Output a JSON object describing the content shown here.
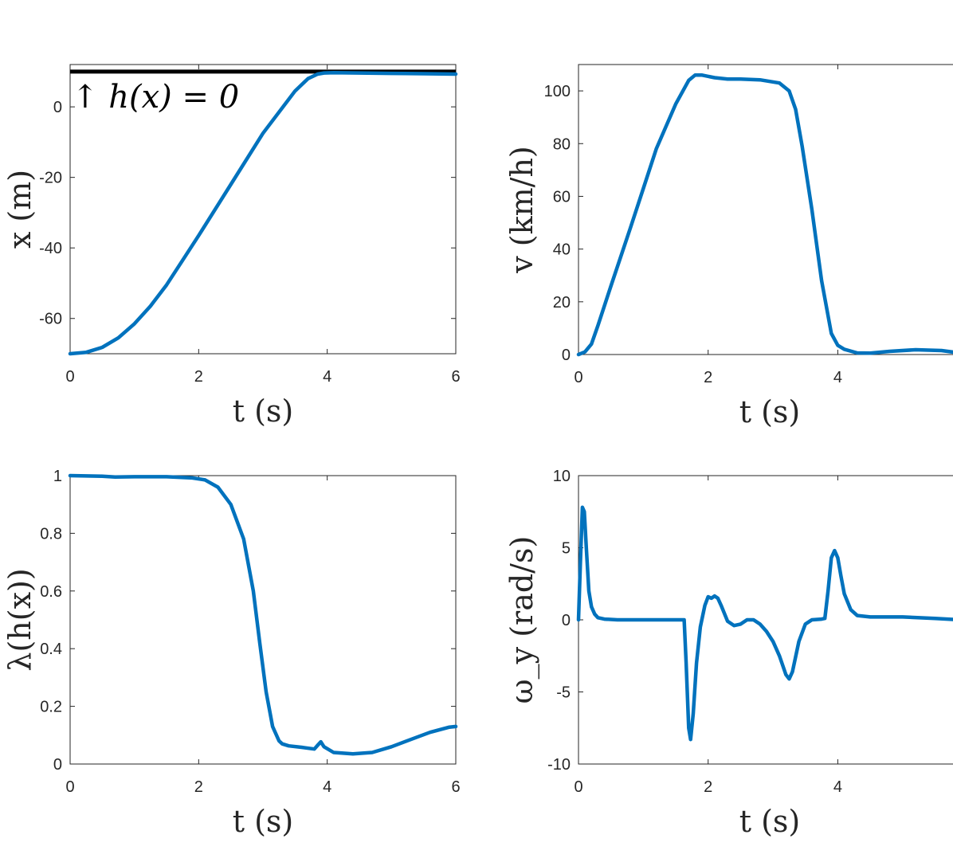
{
  "colors": {
    "series": "#0072bd",
    "axis": "#262626",
    "constraint": "#000000"
  },
  "chart_data": [
    {
      "type": "line",
      "xlabel": "t (s)",
      "ylabel": "x (m)",
      "xlim": [
        0,
        6
      ],
      "ylim": [
        -70,
        12
      ],
      "xticks": [
        0,
        2,
        4,
        6
      ],
      "yticks": [
        -60,
        -40,
        -20,
        0
      ],
      "tick_labels_x": [
        "0",
        "2",
        "4",
        "6"
      ],
      "tick_labels_y": [
        "-60",
        "-40",
        "-20",
        "0"
      ],
      "hline": {
        "y": 10,
        "label": "↑ h(x) = 0"
      },
      "series": [
        {
          "x": [
            0,
            0.25,
            0.5,
            0.75,
            1,
            1.25,
            1.5,
            1.75,
            2,
            2.5,
            3,
            3.5,
            3.7,
            3.85,
            3.95,
            4.1,
            4.5,
            5,
            5.5,
            6
          ],
          "y": [
            -70,
            -69.6,
            -68.2,
            -65.5,
            -61.5,
            -56.5,
            -50.5,
            -43.5,
            -36.5,
            -22,
            -7.5,
            4.5,
            8,
            9.3,
            9.6,
            9.7,
            9.6,
            9.5,
            9.4,
            9.3
          ]
        }
      ]
    },
    {
      "type": "line",
      "xlabel": "t (s)",
      "ylabel": "v (km/h)",
      "xlim": [
        0,
        5.9
      ],
      "ylim": [
        0,
        110
      ],
      "xticks": [
        0,
        2,
        4
      ],
      "yticks": [
        0,
        20,
        40,
        60,
        80,
        100
      ],
      "tick_labels_x": [
        "0",
        "2",
        "4"
      ],
      "tick_labels_y": [
        "0",
        "20",
        "40",
        "60",
        "80",
        "100"
      ],
      "series": [
        {
          "x": [
            0,
            0.1,
            0.2,
            0.3,
            0.5,
            0.8,
            1,
            1.2,
            1.5,
            1.7,
            1.8,
            1.9,
            2.1,
            2.3,
            2.5,
            2.8,
            3.1,
            3.25,
            3.35,
            3.45,
            3.6,
            3.75,
            3.9,
            4,
            4.1,
            4.3,
            4.5,
            4.8,
            5.2,
            5.6,
            5.9
          ],
          "y": [
            0,
            1,
            4,
            11,
            26,
            48,
            63,
            78,
            95,
            104,
            106,
            106,
            105,
            104.5,
            104.5,
            104.2,
            103,
            100,
            93,
            79,
            55,
            28,
            8,
            3.5,
            2,
            0.6,
            0.5,
            1.2,
            1.8,
            1.5,
            0.5
          ]
        }
      ]
    },
    {
      "type": "line",
      "xlabel": "t (s)",
      "ylabel": "λ(h(x))",
      "xlim": [
        0,
        6
      ],
      "ylim": [
        0,
        1
      ],
      "xticks": [
        0,
        2,
        4,
        6
      ],
      "yticks": [
        0,
        0.2,
        0.4,
        0.6,
        0.8,
        1
      ],
      "tick_labels_x": [
        "0",
        "2",
        "4",
        "6"
      ],
      "tick_labels_y": [
        "0",
        "0.2",
        "0.4",
        "0.6",
        "0.8",
        "1"
      ],
      "series": [
        {
          "x": [
            0,
            0.5,
            0.7,
            1,
            1.5,
            1.9,
            2.1,
            2.3,
            2.5,
            2.7,
            2.85,
            2.95,
            3.05,
            3.15,
            3.25,
            3.3,
            3.4,
            3.6,
            3.8,
            3.85,
            3.9,
            3.95,
            4.1,
            4.4,
            4.7,
            5,
            5.3,
            5.6,
            5.9,
            6
          ],
          "y": [
            1,
            0.998,
            0.995,
            0.996,
            0.996,
            0.992,
            0.985,
            0.96,
            0.9,
            0.78,
            0.6,
            0.42,
            0.25,
            0.13,
            0.08,
            0.07,
            0.063,
            0.058,
            0.052,
            0.065,
            0.077,
            0.06,
            0.04,
            0.035,
            0.04,
            0.06,
            0.085,
            0.11,
            0.128,
            0.13
          ]
        }
      ]
    },
    {
      "type": "line",
      "xlabel": "t (s)",
      "ylabel": "ω_y (rad/s)",
      "xlim": [
        0,
        5.9
      ],
      "ylim": [
        -10,
        10
      ],
      "xticks": [
        0,
        2,
        4
      ],
      "yticks": [
        -10,
        -5,
        0,
        5,
        10
      ],
      "tick_labels_x": [
        "0",
        "2",
        "4"
      ],
      "tick_labels_y": [
        "-10",
        "-5",
        "0",
        "5",
        "10"
      ],
      "series": [
        {
          "x": [
            0,
            0.03,
            0.06,
            0.09,
            0.12,
            0.16,
            0.2,
            0.25,
            0.3,
            0.4,
            0.6,
            1,
            1.5,
            1.63,
            1.66,
            1.7,
            1.73,
            1.77,
            1.82,
            1.88,
            1.95,
            2,
            2.05,
            2.1,
            2.15,
            2.2,
            2.3,
            2.4,
            2.5,
            2.6,
            2.7,
            2.8,
            2.9,
            3,
            3.1,
            3.2,
            3.25,
            3.3,
            3.4,
            3.5,
            3.6,
            3.75,
            3.8,
            3.85,
            3.9,
            3.95,
            4,
            4.05,
            4.1,
            4.2,
            4.3,
            4.5,
            5,
            5.5,
            5.9
          ],
          "y": [
            0,
            4,
            7.8,
            7.5,
            5,
            2,
            0.9,
            0.4,
            0.15,
            0.05,
            0,
            0,
            0,
            0,
            -3,
            -7.5,
            -8.3,
            -6.5,
            -3,
            -0.5,
            1,
            1.6,
            1.5,
            1.65,
            1.5,
            1,
            -0.1,
            -0.4,
            -0.3,
            0,
            0,
            -0.3,
            -0.8,
            -1.5,
            -2.5,
            -3.8,
            -4.1,
            -3.6,
            -1.5,
            -0.3,
            0,
            0.05,
            0.1,
            2,
            4.3,
            4.8,
            4.3,
            3,
            1.8,
            0.7,
            0.3,
            0.2,
            0.2,
            0.1,
            0
          ]
        }
      ]
    }
  ]
}
